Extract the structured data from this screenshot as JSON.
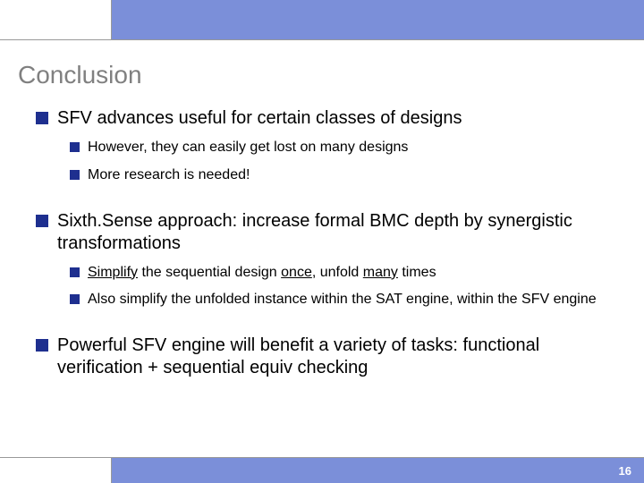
{
  "slide": {
    "title": "Conclusion",
    "page_number": "16",
    "colors": {
      "accent_bar": "#7b8fd9",
      "bullet": "#1e2f8f",
      "title_text": "#808080",
      "sep": "#999999"
    }
  },
  "bullets": {
    "b1": "SFV advances useful for certain classes of designs",
    "b1_1": "However, they can easily get lost on many designs",
    "b1_2": "More research is needed!",
    "b2": "Sixth.Sense approach: increase formal BMC depth by synergistic transformations",
    "b2_1_pre": "Simplify",
    "b2_1_mid": " the sequential design ",
    "b2_1_u1": "once",
    "b2_1_mid2": ", unfold ",
    "b2_1_u2": "many",
    "b2_1_post": " times",
    "b2_2": "Also simplify the unfolded instance within the SAT engine, within the SFV engine",
    "b3": "Powerful SFV engine will benefit a variety of tasks: functional verification + sequential equiv checking"
  }
}
